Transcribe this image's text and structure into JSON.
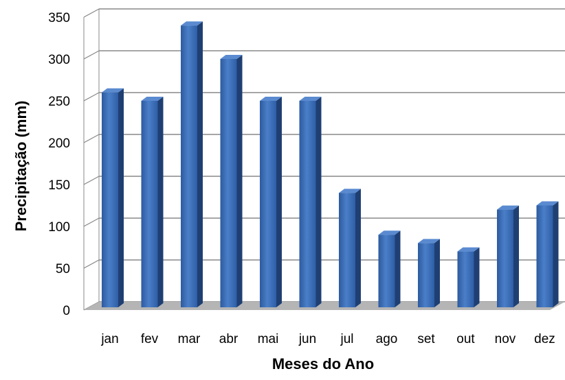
{
  "chart_data": {
    "type": "bar",
    "title": "",
    "xlabel": "Meses do Ano",
    "ylabel": "Precipitação (mm)",
    "categories": [
      "jan",
      "fev",
      "mar",
      "abr",
      "mai",
      "jun",
      "jul",
      "ago",
      "set",
      "out",
      "nov",
      "dez"
    ],
    "values": [
      260,
      250,
      340,
      300,
      250,
      250,
      140,
      90,
      80,
      70,
      120,
      125
    ],
    "ylim": [
      0,
      350
    ],
    "yticks": [
      0,
      50,
      100,
      150,
      200,
      250,
      300,
      350
    ],
    "grid": true,
    "style": "3d-bar",
    "colors": {
      "bar_front": "#3a6db5",
      "bar_side": "#1f3f73",
      "bar_top": "#5a8ad0",
      "floor": "#b5b5b5",
      "gridline": "#888888"
    }
  }
}
